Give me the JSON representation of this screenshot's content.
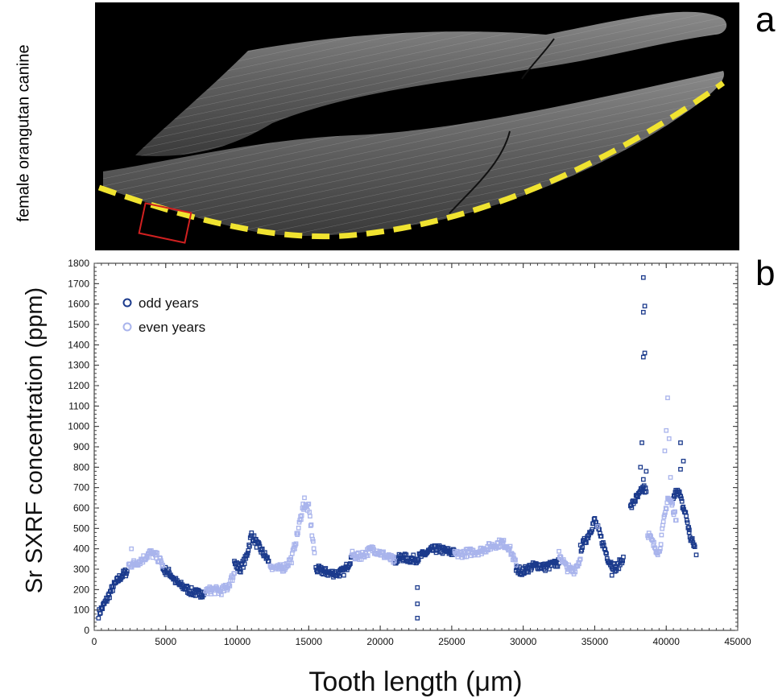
{
  "panel_labels": {
    "a": "a",
    "b": "b"
  },
  "specimen_label": "female orangutan canine",
  "colors": {
    "odd": "#1b3a8c",
    "even": "#a9b4ec",
    "guide": "#f0e330",
    "box": "#d02020"
  },
  "chart_data": {
    "type": "scatter",
    "xlabel": "Tooth length (μm)",
    "ylabel": "Sr SXRF concentration (ppm)",
    "xlim": [
      0,
      45000
    ],
    "ylim": [
      0,
      1800
    ],
    "xticks": [
      0,
      5000,
      10000,
      15000,
      20000,
      25000,
      30000,
      35000,
      40000,
      45000
    ],
    "yticks": [
      0,
      100,
      200,
      300,
      400,
      500,
      600,
      700,
      800,
      900,
      1000,
      1100,
      1200,
      1300,
      1400,
      1500,
      1600,
      1700,
      1800
    ],
    "legend_position": "top-left",
    "grid": false,
    "series": [
      {
        "name": "odd years",
        "color": "#1b3a8c",
        "segments": [
          {
            "x": [
              300,
              800,
              1300,
              1800,
              2300
            ],
            "y": [
              80,
              140,
              210,
              260,
              290
            ]
          },
          {
            "x": [
              4800,
              5300,
              5800,
              6300,
              6800,
              7300,
              7700
            ],
            "y": [
              300,
              280,
              230,
              210,
              190,
              180,
              185
            ]
          },
          {
            "x": [
              9800,
              10200,
              10600,
              11000,
              11400,
              11800,
              12200
            ],
            "y": [
              330,
              300,
              350,
              470,
              420,
              380,
              340
            ]
          },
          {
            "x": [
              15500,
              16000,
              16500,
              17000,
              17500,
              18000
            ],
            "y": [
              300,
              290,
              280,
              280,
              290,
              360
            ]
          },
          {
            "x": [
              21000,
              21500,
              22000,
              22500,
              23000,
              23500,
              24000,
              24500,
              25200
            ],
            "y": [
              340,
              360,
              350,
              350,
              370,
              390,
              400,
              390,
              380
            ]
          },
          {
            "x": [
              29500,
              30000,
              30500,
              31000,
              31500,
              32000,
              32500
            ],
            "y": [
              300,
              290,
              310,
              320,
              310,
              320,
              330
            ]
          },
          {
            "x": [
              34000,
              34500,
              35000,
              35500,
              36000,
              36500,
              37000
            ],
            "y": [
              400,
              460,
              540,
              440,
              340,
              300,
              360
            ]
          },
          {
            "x": [
              37500,
              37800,
              38100,
              38400,
              38600
            ],
            "y": [
              600,
              640,
              660,
              700,
              680
            ]
          },
          {
            "x": [
              40500,
              40800,
              41100,
              41400,
              41700,
              42000
            ],
            "y": [
              640,
              700,
              620,
              560,
              450,
              410
            ]
          }
        ],
        "points": [
          {
            "x": 22600,
            "y": 210
          },
          {
            "x": 22600,
            "y": 130
          },
          {
            "x": 22600,
            "y": 60
          },
          {
            "x": 38400,
            "y": 1730
          },
          {
            "x": 38500,
            "y": 1590
          },
          {
            "x": 38400,
            "y": 1560
          },
          {
            "x": 38500,
            "y": 1360
          },
          {
            "x": 38400,
            "y": 1340
          },
          {
            "x": 38300,
            "y": 920
          },
          {
            "x": 38200,
            "y": 800
          },
          {
            "x": 38600,
            "y": 780
          },
          {
            "x": 38400,
            "y": 740
          },
          {
            "x": 41000,
            "y": 920
          },
          {
            "x": 41200,
            "y": 830
          },
          {
            "x": 41000,
            "y": 790
          },
          {
            "x": 36200,
            "y": 270
          },
          {
            "x": 42100,
            "y": 370
          },
          {
            "x": 41600,
            "y": 480
          }
        ]
      },
      {
        "name": "even years",
        "color": "#a9b4ec",
        "segments": [
          {
            "x": [
              2400,
              2900,
              3400,
              3900,
              4400,
              4800
            ],
            "y": [
              320,
              330,
              350,
              380,
              360,
              320
            ]
          },
          {
            "x": [
              7800,
              8300,
              8800,
              9300,
              9800
            ],
            "y": [
              190,
              200,
              190,
              210,
              280
            ]
          },
          {
            "x": [
              12300,
              12800,
              13300,
              13800,
              14200,
              14600,
              15000,
              15400
            ],
            "y": [
              320,
              300,
              310,
              350,
              470,
              610,
              600,
              380
            ]
          },
          {
            "x": [
              18000,
              18500,
              19000,
              19500,
              20000,
              20500,
              21000
            ],
            "y": [
              370,
              360,
              380,
              400,
              380,
              360,
              340
            ]
          },
          {
            "x": [
              25200,
              26000,
              27000,
              28000,
              28500,
              29000,
              29500
            ],
            "y": [
              370,
              380,
              390,
              420,
              430,
              410,
              320
            ]
          },
          {
            "x": [
              32500,
              33000,
              33500,
              34000
            ],
            "y": [
              380,
              310,
              290,
              350
            ]
          },
          {
            "x": [
              38700,
              39100,
              39500,
              39800,
              40100,
              40400,
              40700
            ],
            "y": [
              480,
              420,
              380,
              520,
              650,
              620,
              540
            ]
          }
        ],
        "points": [
          {
            "x": 14700,
            "y": 650
          },
          {
            "x": 40100,
            "y": 1140
          },
          {
            "x": 40000,
            "y": 980
          },
          {
            "x": 39900,
            "y": 880
          },
          {
            "x": 40200,
            "y": 940
          },
          {
            "x": 40300,
            "y": 750
          },
          {
            "x": 35200,
            "y": 510
          },
          {
            "x": 2600,
            "y": 400
          }
        ]
      }
    ]
  }
}
